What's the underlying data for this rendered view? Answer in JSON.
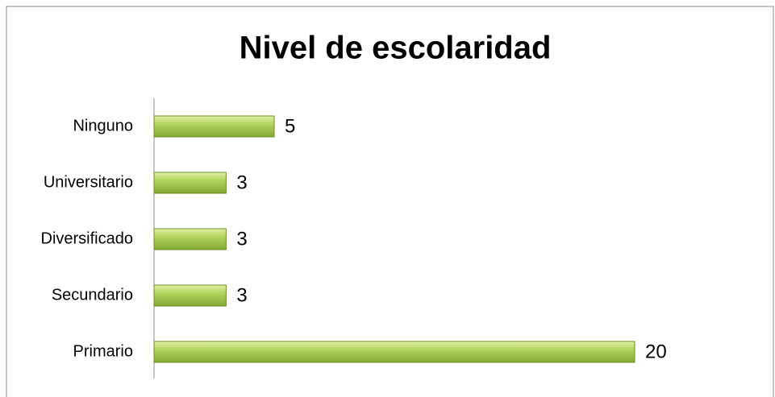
{
  "chart_data": {
    "type": "hbar",
    "title": "Nivel de escolaridad",
    "categories": [
      "Ninguno",
      "Universitario",
      "Diversificado",
      "Secundario",
      "Primario"
    ],
    "values": [
      5,
      3,
      3,
      3,
      20
    ],
    "color": "#9bc14a"
  }
}
